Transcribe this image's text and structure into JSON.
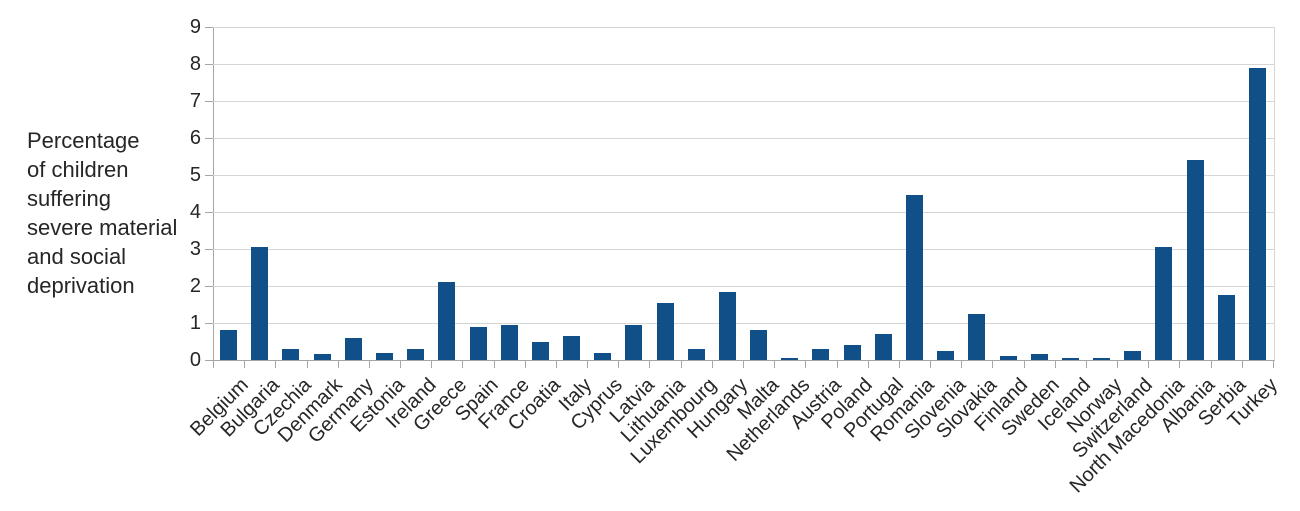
{
  "chart_data": {
    "type": "bar",
    "title": "",
    "ylabel_lines": [
      "Percentage",
      "of children",
      "suffering",
      "severe material",
      "and social",
      "deprivation"
    ],
    "categories": [
      "Belgium",
      "Bulgaria",
      "Czechia",
      "Denmark",
      "Germany",
      "Estonia",
      "Ireland",
      "Greece",
      "Spain",
      "France",
      "Croatia",
      "Italy",
      "Cyprus",
      "Latvia",
      "Lithuania",
      "Luxembourg",
      "Hungary",
      "Malta",
      "Netherlands",
      "Austria",
      "Poland",
      "Portugal",
      "Romania",
      "Slovenia",
      "Slovakia",
      "Finland",
      "Sweden",
      "Iceland",
      "Norway",
      "Switzerland",
      "North Macedonia",
      "Albania",
      "Serbia",
      "Turkey"
    ],
    "values": [
      0.8,
      3.05,
      0.3,
      0.15,
      0.6,
      0.2,
      0.3,
      2.1,
      0.9,
      0.95,
      0.5,
      0.65,
      0.2,
      0.95,
      1.55,
      0.3,
      1.85,
      0.8,
      0.05,
      0.3,
      0.4,
      0.7,
      4.45,
      0.25,
      1.25,
      0.1,
      0.15,
      0.05,
      0.05,
      0.25,
      3.05,
      5.4,
      1.75,
      7.9
    ],
    "yticks": [
      0,
      1,
      2,
      3,
      4,
      5,
      6,
      7,
      8,
      9
    ],
    "ylim": [
      0,
      9
    ],
    "xlabel": "",
    "grid": "horizontal",
    "legend": "none",
    "bar_color": "#114f88",
    "gridline_color": "#d6d6d6",
    "axis_color": "#a6a6a6",
    "text_color": "#262626"
  }
}
